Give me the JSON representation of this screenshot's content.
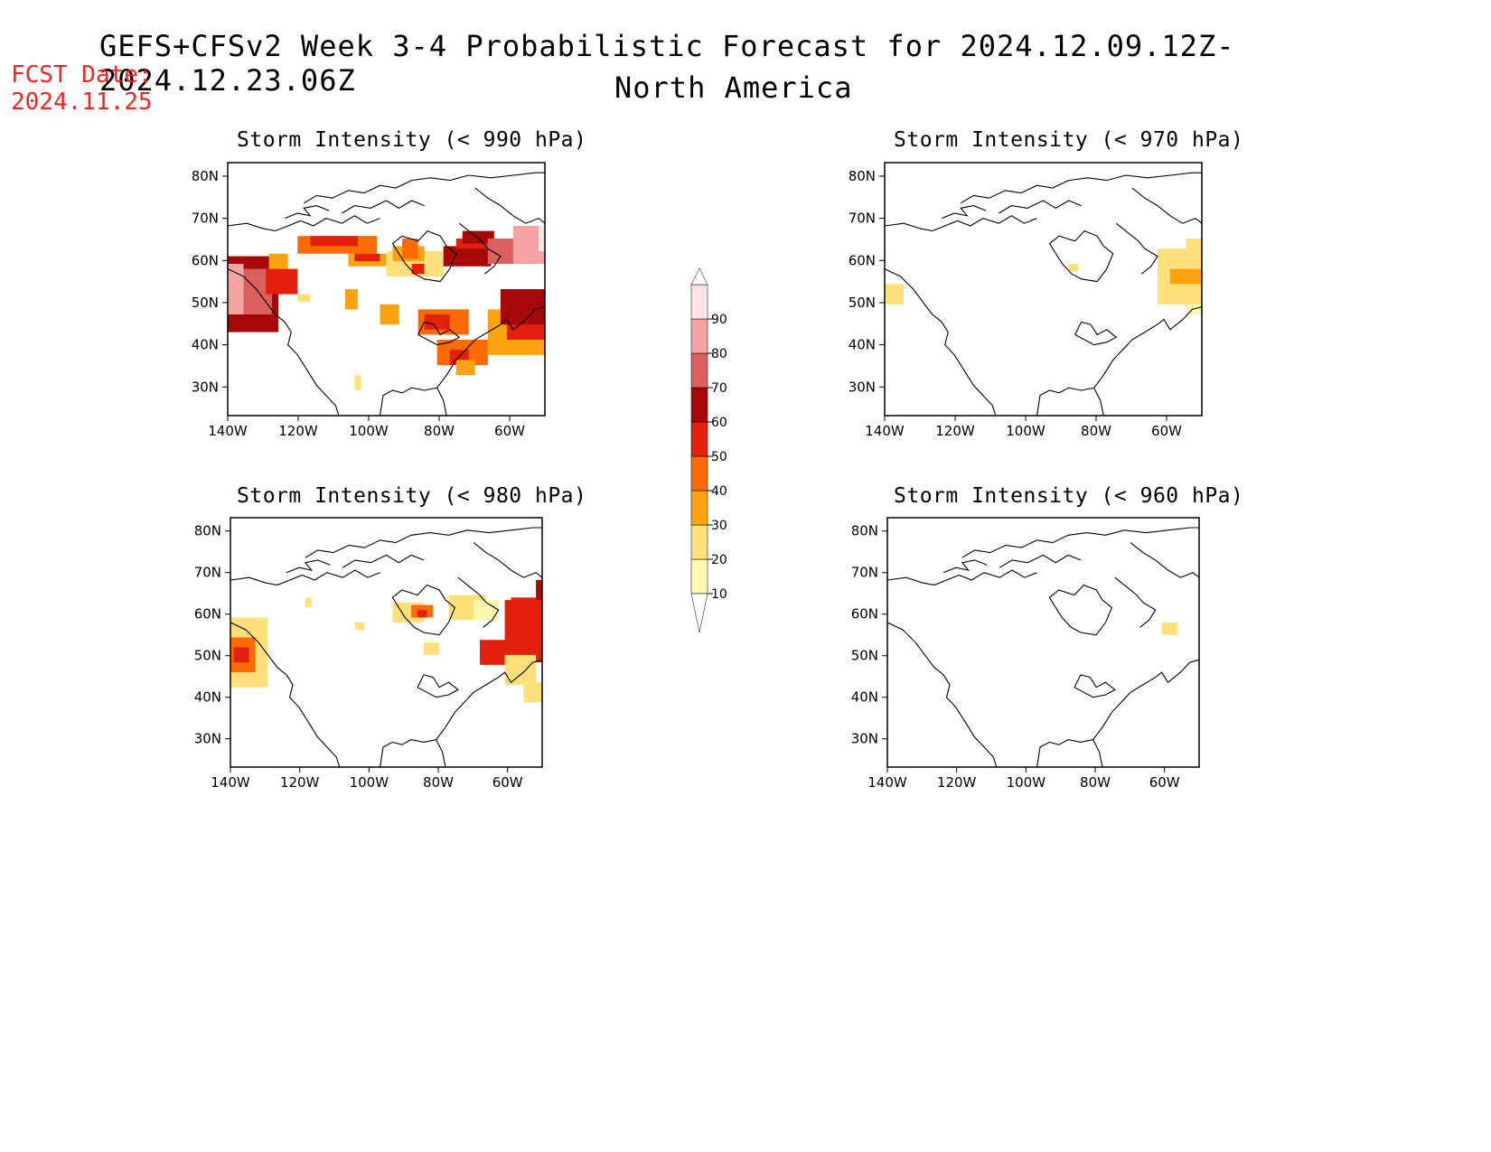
{
  "title": "GEFS+CFSv2 Week 3-4 Probabilistic Forecast for 2024.12.09.12Z-2024.12.23.06Z",
  "subtitle": "North America",
  "fcst_date": {
    "label": "FCST Date:",
    "value": "2024.11.25"
  },
  "panels": [
    {
      "id": "p990",
      "title": "Storm Intensity (< 990 hPa)"
    },
    {
      "id": "p970",
      "title": "Storm Intensity (< 970 hPa)"
    },
    {
      "id": "p980",
      "title": "Storm Intensity (< 980 hPa)"
    },
    {
      "id": "p960",
      "title": "Storm Intensity (< 960 hPa)"
    }
  ],
  "axes": {
    "lat_labels": [
      "80N",
      "70N",
      "60N",
      "50N",
      "40N",
      "30N"
    ],
    "lon_labels": [
      "140W",
      "120W",
      "100W",
      "80W",
      "60W"
    ],
    "lat_values": [
      80,
      70,
      60,
      50,
      40,
      30
    ],
    "lon_values": [
      -140,
      -120,
      -100,
      -80,
      -60
    ],
    "lat_range": [
      25,
      85
    ],
    "lon_range": [
      -140,
      -50
    ]
  },
  "colorbar": {
    "levels": [
      "10",
      "20",
      "30",
      "40",
      "50",
      "60",
      "70",
      "80",
      "90"
    ],
    "colors": [
      "#fff7b0",
      "#fde07a",
      "#fca30f",
      "#fc6a03",
      "#e3200b",
      "#a80707",
      "#dc5f5f",
      "#f5a3a3",
      "#fde4e4"
    ]
  }
}
